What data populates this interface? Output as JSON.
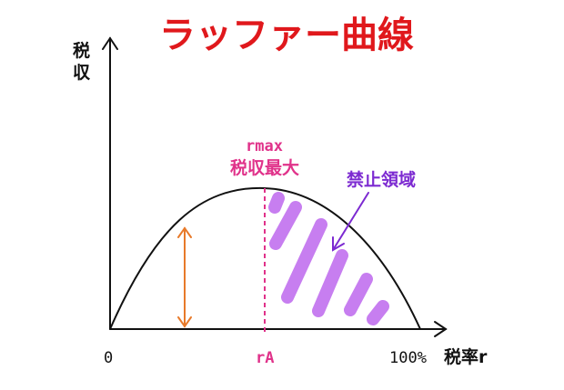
{
  "title": "ラッファー曲線",
  "y_axis_label_line1": "税",
  "y_axis_label_line2": "収",
  "x_axis_label": "税率r",
  "tick_zero": "0",
  "tick_ra": "rA",
  "tick_100": "100%",
  "peak_label_line1": "rmax",
  "peak_label_line2": "税収最大",
  "forbidden_zone_label": "禁止領域",
  "colors": {
    "title": "#e0181c",
    "peak": "#e0328a",
    "forbidden_text": "#7c2ad1",
    "hatch": "#c77ef0",
    "double_arrow": "#e87a2a",
    "curve": "#111111"
  }
}
